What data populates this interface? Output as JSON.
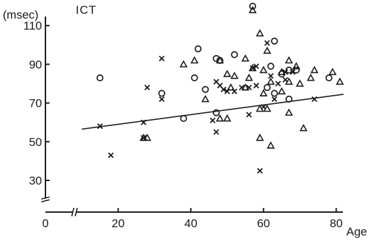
{
  "chart_data": {
    "type": "scatter",
    "title": "ICT",
    "ylabel": "(msec)",
    "xlabel": "Age",
    "xlim": [
      0,
      83
    ],
    "ylim": [
      20,
      115
    ],
    "xticks": [
      0,
      20,
      40,
      60,
      80
    ],
    "yticks": [
      30,
      50,
      70,
      90,
      110
    ],
    "grid": false,
    "axis_break_x": 8,
    "axis_break_y": 20,
    "series": [
      {
        "marker": "cross",
        "points": [
          [
            15,
            58
          ],
          [
            18,
            43
          ],
          [
            27,
            60
          ],
          [
            27,
            52
          ],
          [
            28,
            78
          ],
          [
            32,
            72
          ],
          [
            32,
            93
          ],
          [
            46,
            61
          ],
          [
            47,
            55
          ],
          [
            47,
            81
          ],
          [
            48,
            79
          ],
          [
            49,
            77
          ],
          [
            50,
            76
          ],
          [
            52,
            76
          ],
          [
            54,
            78
          ],
          [
            56,
            78
          ],
          [
            56,
            64
          ],
          [
            57,
            88
          ],
          [
            58,
            79
          ],
          [
            58,
            89
          ],
          [
            59,
            35
          ],
          [
            60,
            68
          ],
          [
            61,
            101
          ],
          [
            62,
            84
          ],
          [
            63,
            72
          ],
          [
            64,
            80
          ],
          [
            66,
            86
          ],
          [
            66,
            82
          ],
          [
            68,
            86
          ],
          [
            74,
            72
          ]
        ]
      },
      {
        "marker": "triangle",
        "points": [
          [
            27,
            52
          ],
          [
            28,
            52
          ],
          [
            38,
            90
          ],
          [
            41,
            92
          ],
          [
            44,
            72
          ],
          [
            48,
            92
          ],
          [
            48,
            62
          ],
          [
            50,
            85
          ],
          [
            50,
            62
          ],
          [
            51,
            78
          ],
          [
            52,
            84
          ],
          [
            55,
            93
          ],
          [
            55,
            78
          ],
          [
            56,
            83
          ],
          [
            57,
            118
          ],
          [
            57,
            88
          ],
          [
            59,
            106
          ],
          [
            59,
            52
          ],
          [
            59,
            67
          ],
          [
            60,
            75
          ],
          [
            60,
            87
          ],
          [
            61,
            67
          ],
          [
            61,
            97
          ],
          [
            62,
            48
          ],
          [
            62,
            81
          ],
          [
            65,
            86
          ],
          [
            65,
            76
          ],
          [
            67,
            92
          ],
          [
            67,
            65
          ],
          [
            67,
            81
          ],
          [
            69,
            89
          ],
          [
            70,
            80
          ],
          [
            71,
            57
          ],
          [
            73,
            83
          ],
          [
            74,
            87
          ],
          [
            79,
            86
          ],
          [
            81,
            81
          ]
        ]
      },
      {
        "marker": "circle",
        "points": [
          [
            15,
            83
          ],
          [
            32,
            75
          ],
          [
            38,
            62
          ],
          [
            41,
            83
          ],
          [
            42,
            98
          ],
          [
            44,
            77
          ],
          [
            47,
            93
          ],
          [
            47,
            65
          ],
          [
            48,
            92
          ],
          [
            52,
            95
          ],
          [
            57,
            120
          ],
          [
            61,
            78
          ],
          [
            62,
            89
          ],
          [
            63,
            102
          ],
          [
            63,
            75
          ],
          [
            65,
            85
          ],
          [
            67,
            87
          ],
          [
            67,
            72
          ],
          [
            69,
            87
          ],
          [
            78,
            83
          ]
        ]
      }
    ],
    "regression_line": {
      "x": [
        10,
        82
      ],
      "y": [
        56.5,
        74.5
      ]
    }
  }
}
